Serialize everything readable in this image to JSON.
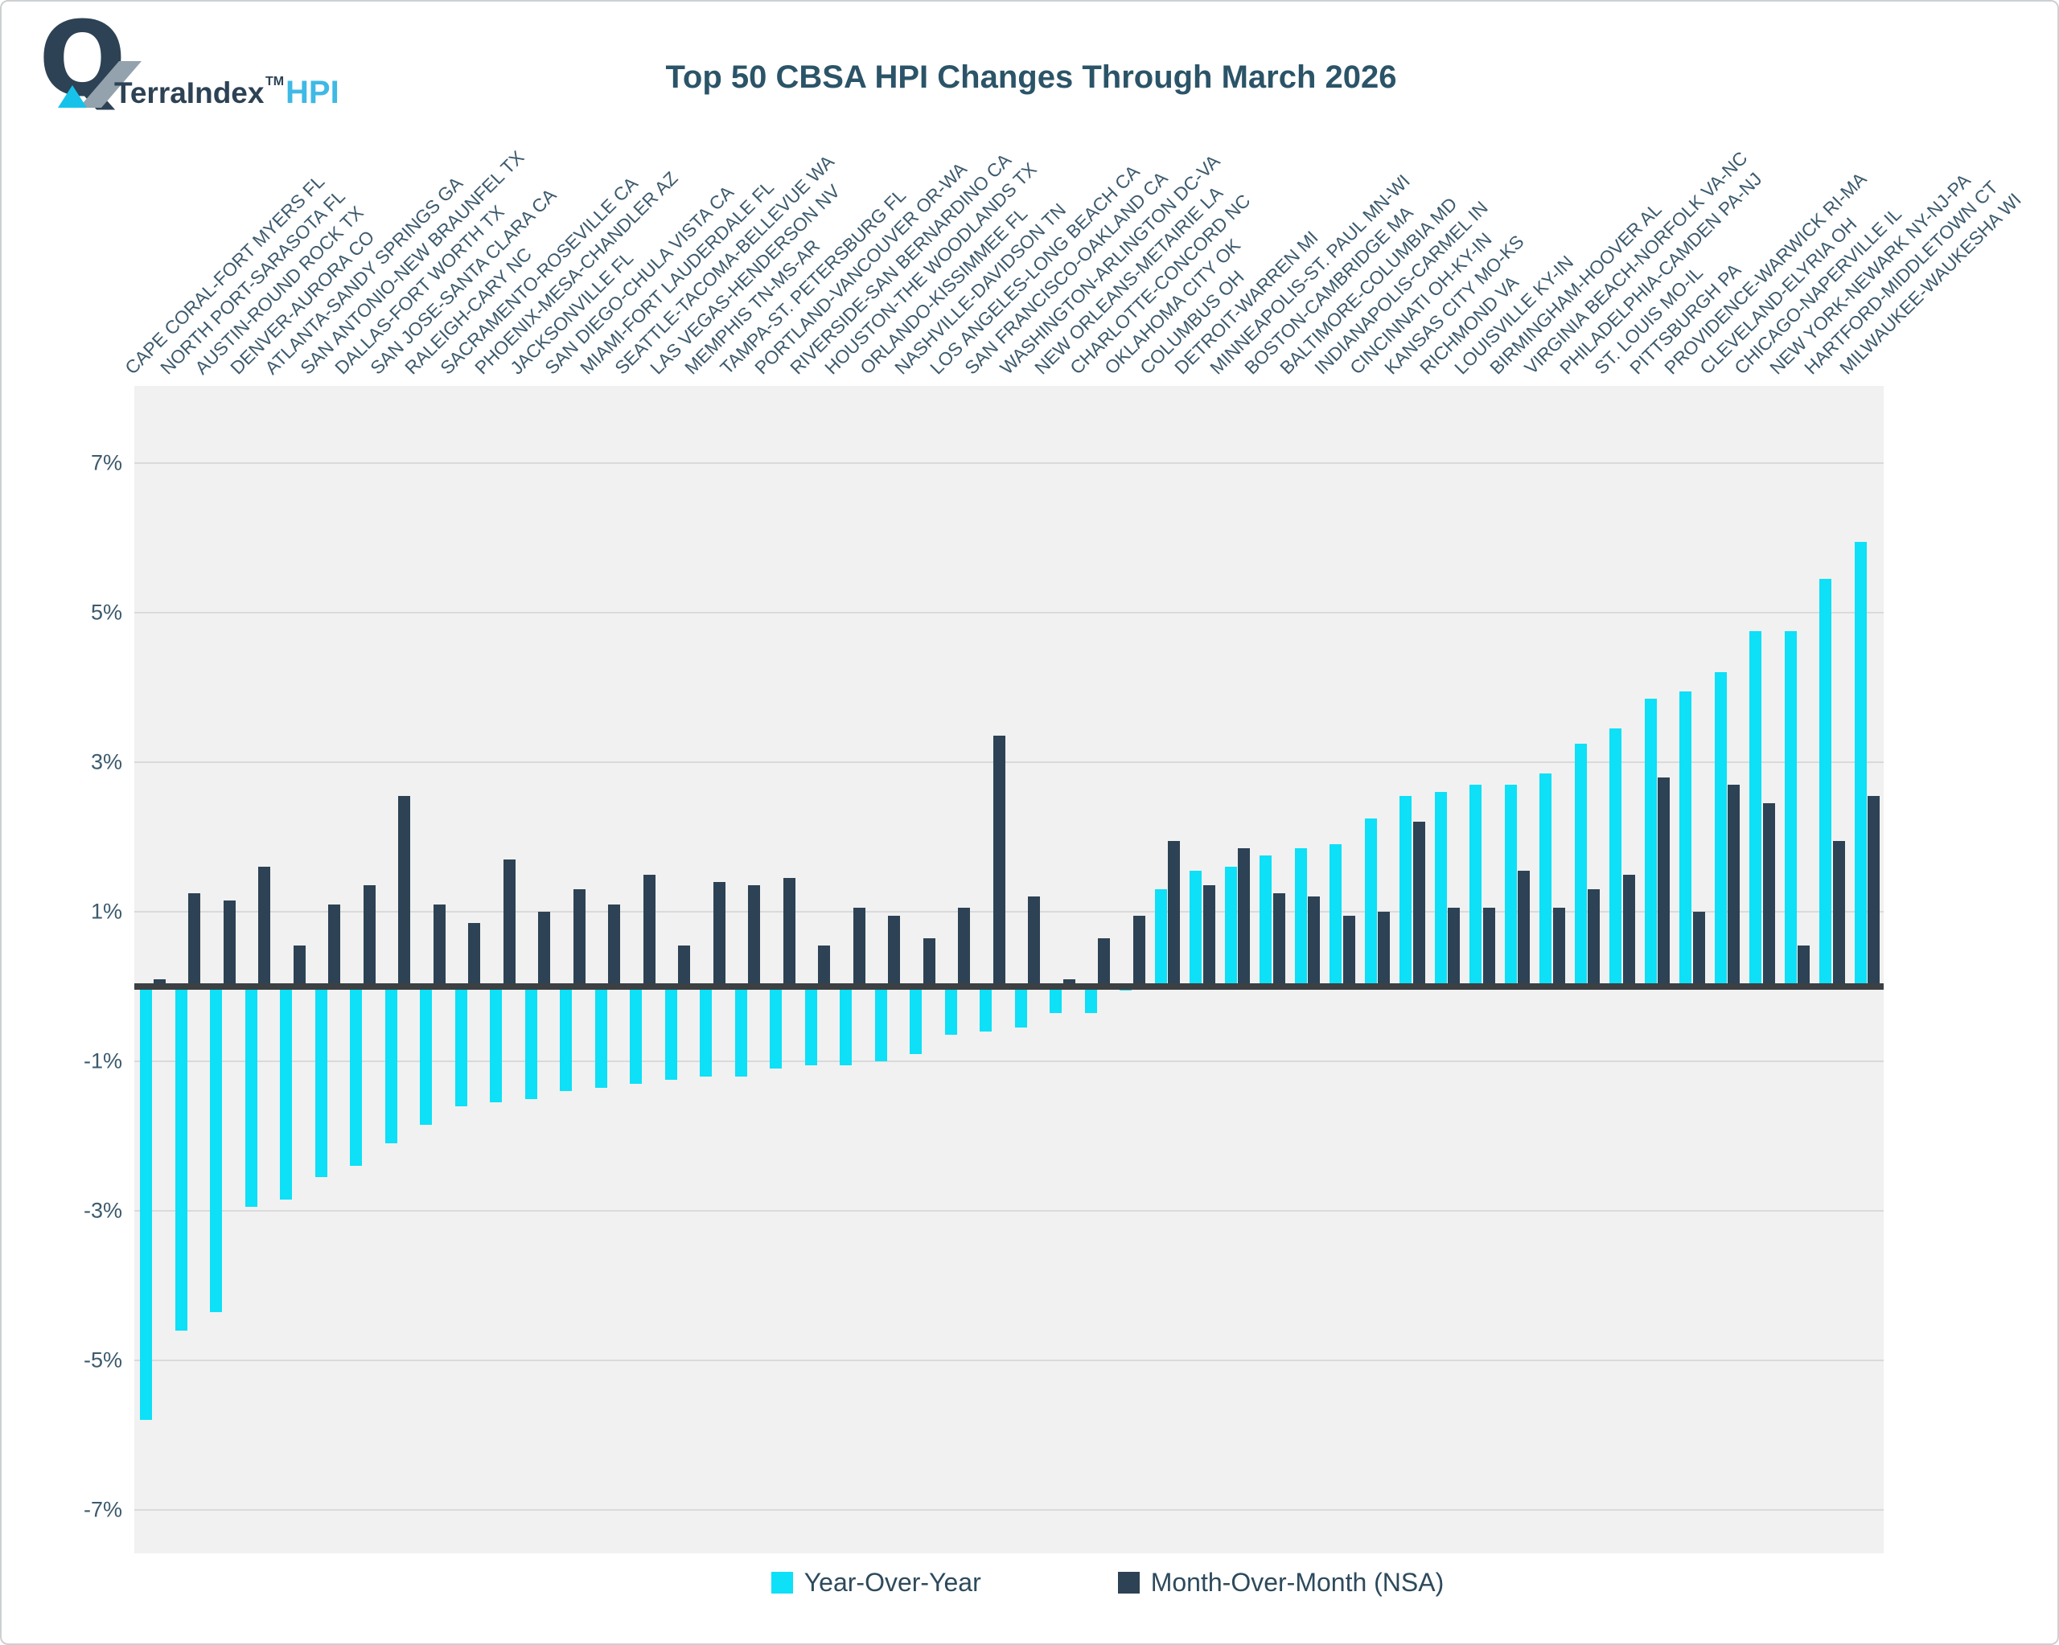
{
  "logo": {
    "brand": "TerraIndex",
    "tm": "TM",
    "product": "HPI",
    "mark_color": "#2d4254",
    "slash_color": "#93a2ad",
    "triangle_color": "#17c2ea",
    "product_color": "#3fb9e5"
  },
  "title": "Top 50 CBSA HPI Changes Through March 2026",
  "legend": [
    {
      "label": "Year-Over-Year",
      "color": "#0de0f7"
    },
    {
      "label": "Month-Over-Month (NSA)",
      "color": "#2d4254"
    }
  ],
  "colors": {
    "plot_background": "#f1f1f1",
    "gridline": "#dadada",
    "zero_line": "#3c4043",
    "axis_text": "#3c5a6d",
    "title_text": "#2b5468",
    "yoy_bar": "#0de0f7",
    "mom_bar": "#2d4254"
  },
  "chart_data": {
    "type": "bar",
    "title": "Top 50 CBSA HPI Changes Through March 2026",
    "xlabel": "",
    "ylabel": "",
    "ylim": [
      -7.8,
      7.8
    ],
    "grid": true,
    "legend_position": "bottom",
    "ytick_labels": [
      "7%",
      "5%",
      "3%",
      "1%",
      "-1%",
      "-3%",
      "-5%",
      "-7%"
    ],
    "ytick_values": [
      7,
      5,
      3,
      1,
      -1,
      -3,
      -5,
      -7
    ],
    "categories": [
      "CAPE CORAL-FORT MYERS FL",
      "NORTH PORT-SARASOTA FL",
      "AUSTIN-ROUND ROCK TX",
      "DENVER-AURORA CO",
      "ATLANTA-SANDY SPRINGS GA",
      "SAN ANTONIO-NEW BRAUNFEL TX",
      "DALLAS-FORT WORTH TX",
      "SAN JOSE-SANTA CLARA CA",
      "RALEIGH-CARY NC",
      "SACRAMENTO-ROSEVILLE CA",
      "PHOENIX-MESA-CHANDLER AZ",
      "JACKSONVILLE FL",
      "SAN DIEGO-CHULA VISTA CA",
      "MIAMI-FORT LAUDERDALE FL",
      "SEATTLE-TACOMA-BELLEVUE WA",
      "LAS VEGAS-HENDERSON NV",
      "MEMPHIS TN-MS-AR",
      "TAMPA-ST. PETERSBURG FL",
      "PORTLAND-VANCOUVER OR-WA",
      "RIVERSIDE-SAN BERNARDINO CA",
      "HOUSTON-THE WOODLANDS TX",
      "ORLANDO-KISSIMMEE FL",
      "NASHVILLE-DAVIDSON TN",
      "LOS ANGELES-LONG BEACH CA",
      "SAN FRANCISCO-OAKLAND CA",
      "WASHINGTON-ARLINGTON DC-VA",
      "NEW ORLEANS-METAIRIE LA",
      "CHARLOTTE-CONCORD NC",
      "OKLAHOMA CITY OK",
      "COLUMBUS OH",
      "DETROIT-WARREN MI",
      "MINNEAPOLIS-ST. PAUL MN-WI",
      "BOSTON-CAMBRIDGE MA",
      "BALTIMORE-COLUMBIA MD",
      "INDIANAPOLIS-CARMEL IN",
      "CINCINNATI OH-KY-IN",
      "KANSAS CITY MO-KS",
      "RICHMOND VA",
      "LOUISVILLE KY-IN",
      "BIRMINGHAM-HOOVER AL",
      "VIRGINIA BEACH-NORFOLK VA-NC",
      "PHILADELPHIA-CAMDEN PA-NJ",
      "ST. LOUIS MO-IL",
      "PITTSBURGH PA",
      "PROVIDENCE-WARWICK RI-MA",
      "CLEVELAND-ELYRIA OH",
      "CHICAGO-NAPERVILLE IL",
      "NEW YORK-NEWARK NY-NJ-PA",
      "HARTFORD-MIDDLETOWN CT",
      "MILWAUKEE-WAUKESHA WI"
    ],
    "series": [
      {
        "name": "Year-Over-Year",
        "color": "#0de0f7",
        "values": [
          -5.8,
          -4.6,
          -4.35,
          -2.95,
          -2.85,
          -2.55,
          -2.4,
          -2.1,
          -1.85,
          -1.6,
          -1.55,
          -1.5,
          -1.4,
          -1.35,
          -1.3,
          -1.25,
          -1.2,
          -1.2,
          -1.1,
          -1.05,
          -1.05,
          -1.0,
          -0.9,
          -0.65,
          -0.6,
          -0.55,
          -0.35,
          -0.35,
          -0.05,
          1.3,
          1.55,
          1.6,
          1.75,
          1.85,
          1.9,
          2.25,
          2.55,
          2.6,
          2.7,
          2.7,
          2.85,
          3.25,
          3.45,
          3.85,
          3.95,
          4.2,
          4.75,
          4.75,
          5.45,
          5.95
        ]
      },
      {
        "name": "Month-Over-Month (NSA)",
        "color": "#2d4254",
        "values": [
          0.1,
          1.25,
          1.15,
          1.6,
          0.55,
          1.1,
          1.35,
          2.55,
          1.1,
          0.85,
          1.7,
          1.0,
          1.3,
          1.1,
          1.5,
          0.55,
          1.4,
          1.35,
          1.45,
          0.55,
          1.05,
          0.95,
          0.65,
          1.05,
          3.35,
          1.2,
          0.1,
          0.65,
          0.95,
          1.95,
          1.35,
          1.85,
          1.25,
          1.2,
          0.95,
          1.0,
          2.2,
          1.05,
          1.05,
          1.55,
          1.05,
          1.3,
          1.5,
          2.8,
          1.0,
          2.7,
          2.45,
          0.55,
          1.95,
          2.55
        ]
      }
    ]
  }
}
